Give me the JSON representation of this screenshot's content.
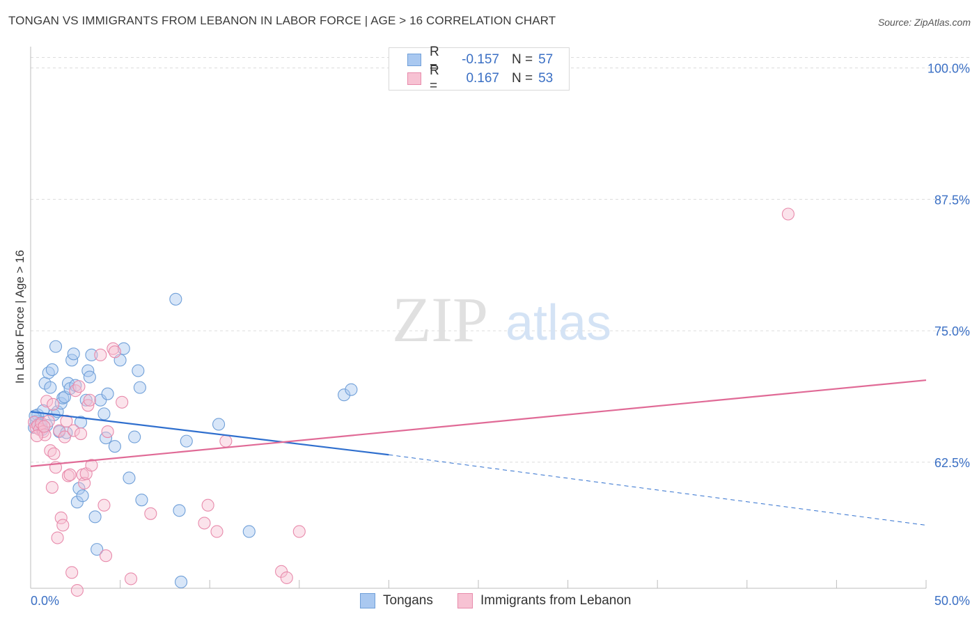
{
  "title": "TONGAN VS IMMIGRANTS FROM LEBANON IN LABOR FORCE | AGE > 16 CORRELATION CHART",
  "source": "Source: ZipAtlas.com",
  "watermark": {
    "zip": "ZIP",
    "atlas": "atlas"
  },
  "legend_top": [
    {
      "r_label": "R =",
      "r_value": "-0.157",
      "n_label": "N =",
      "n_value": "57",
      "color": "#a9c8f0",
      "border": "#6f9fd8"
    },
    {
      "r_label": "R =",
      "r_value": "0.167",
      "n_label": "N =",
      "n_value": "53",
      "color": "#f7c2d3",
      "border": "#e88aab"
    }
  ],
  "legend_bottom": [
    {
      "label": "Tongans",
      "color": "#a9c8f0",
      "border": "#6f9fd8"
    },
    {
      "label": "Immigrants from Lebanon",
      "color": "#f7c2d3",
      "border": "#e88aab"
    }
  ],
  "chart_data": {
    "type": "scatter",
    "title": "TONGAN VS IMMIGRANTS FROM LEBANON IN LABOR FORCE | AGE > 16 CORRELATION CHART",
    "xlabel": "",
    "ylabel": "In Labor Force | Age > 16",
    "xlim": [
      0,
      50
    ],
    "ylim": [
      50.5,
      101.5
    ],
    "x_tick_labels": [
      "0.0%",
      "50.0%"
    ],
    "y_ticks": [
      62.5,
      75.0,
      87.5,
      100.0
    ],
    "y_tick_labels": [
      "62.5%",
      "75.0%",
      "87.5%",
      "100.0%"
    ],
    "grid": true,
    "series": [
      {
        "name": "Tongans",
        "color": "#6f9fd8",
        "fill": "#a9c8f0",
        "trend": {
          "x0": 0,
          "y0": 67.3,
          "x1": 20,
          "y1": 63.2,
          "dash_x1": 50,
          "dash_y1": 56.5,
          "color": "#2f6fce"
        },
        "points": [
          [
            0.2,
            65.8
          ],
          [
            0.3,
            66.4
          ],
          [
            0.4,
            67.0
          ],
          [
            0.5,
            66.2
          ],
          [
            0.6,
            65.9
          ],
          [
            0.7,
            67.4
          ],
          [
            0.8,
            70.0
          ],
          [
            0.9,
            66.0
          ],
          [
            1.0,
            71.0
          ],
          [
            1.1,
            69.6
          ],
          [
            1.2,
            71.3
          ],
          [
            1.3,
            67.0
          ],
          [
            1.4,
            73.5
          ],
          [
            1.5,
            67.3
          ],
          [
            1.6,
            65.4
          ],
          [
            1.7,
            68.1
          ],
          [
            1.8,
            68.6
          ],
          [
            1.9,
            68.7
          ],
          [
            2.0,
            65.3
          ],
          [
            2.1,
            70.0
          ],
          [
            2.2,
            69.5
          ],
          [
            2.3,
            72.2
          ],
          [
            2.4,
            72.8
          ],
          [
            2.5,
            69.8
          ],
          [
            2.6,
            58.7
          ],
          [
            2.7,
            60.0
          ],
          [
            2.8,
            66.3
          ],
          [
            2.9,
            59.3
          ],
          [
            3.1,
            68.4
          ],
          [
            3.2,
            71.2
          ],
          [
            3.3,
            70.6
          ],
          [
            3.4,
            72.7
          ],
          [
            3.6,
            57.3
          ],
          [
            3.7,
            54.2
          ],
          [
            3.9,
            68.4
          ],
          [
            4.1,
            67.1
          ],
          [
            4.2,
            64.8
          ],
          [
            4.3,
            69.0
          ],
          [
            4.7,
            64.0
          ],
          [
            5.0,
            72.2
          ],
          [
            5.2,
            73.3
          ],
          [
            5.5,
            61.0
          ],
          [
            5.8,
            64.9
          ],
          [
            6.0,
            71.2
          ],
          [
            6.1,
            69.6
          ],
          [
            6.2,
            58.9
          ],
          [
            8.1,
            78.0
          ],
          [
            8.3,
            57.9
          ],
          [
            8.4,
            51.1
          ],
          [
            8.7,
            64.5
          ],
          [
            10.5,
            66.1
          ],
          [
            12.2,
            55.9
          ],
          [
            17.5,
            68.9
          ],
          [
            17.9,
            69.4
          ],
          [
            0.25,
            66.9
          ],
          [
            0.55,
            66.0
          ],
          [
            0.65,
            65.6
          ]
        ]
      },
      {
        "name": "Immigrants from Lebanon",
        "color": "#e88aab",
        "fill": "#f7c2d3",
        "trend": {
          "x0": 0,
          "y0": 62.1,
          "x1": 50,
          "y1": 70.3,
          "color": "#e06a96"
        },
        "points": [
          [
            0.2,
            66.3
          ],
          [
            0.3,
            65.8
          ],
          [
            0.4,
            66.0
          ],
          [
            0.5,
            65.6
          ],
          [
            0.6,
            66.2
          ],
          [
            0.7,
            65.4
          ],
          [
            0.8,
            65.1
          ],
          [
            0.9,
            68.3
          ],
          [
            1.0,
            66.4
          ],
          [
            1.1,
            63.6
          ],
          [
            1.2,
            60.1
          ],
          [
            1.3,
            63.3
          ],
          [
            1.4,
            62.0
          ],
          [
            1.5,
            55.3
          ],
          [
            1.6,
            65.5
          ],
          [
            1.7,
            57.2
          ],
          [
            1.8,
            56.5
          ],
          [
            1.9,
            64.9
          ],
          [
            2.0,
            66.4
          ],
          [
            2.1,
            61.2
          ],
          [
            2.2,
            61.3
          ],
          [
            2.3,
            52.0
          ],
          [
            2.4,
            65.5
          ],
          [
            2.5,
            69.3
          ],
          [
            2.6,
            50.3
          ],
          [
            2.7,
            69.7
          ],
          [
            2.8,
            65.2
          ],
          [
            2.9,
            61.3
          ],
          [
            3.0,
            60.5
          ],
          [
            3.1,
            61.4
          ],
          [
            3.2,
            67.9
          ],
          [
            3.3,
            68.4
          ],
          [
            3.4,
            62.2
          ],
          [
            3.9,
            72.7
          ],
          [
            4.1,
            58.4
          ],
          [
            4.2,
            53.6
          ],
          [
            4.3,
            65.4
          ],
          [
            4.6,
            73.3
          ],
          [
            4.7,
            73.0
          ],
          [
            5.1,
            68.2
          ],
          [
            5.6,
            51.4
          ],
          [
            6.7,
            57.6
          ],
          [
            9.7,
            56.7
          ],
          [
            9.9,
            58.4
          ],
          [
            10.4,
            55.9
          ],
          [
            10.9,
            64.5
          ],
          [
            14.0,
            52.1
          ],
          [
            14.3,
            51.5
          ],
          [
            15.0,
            55.9
          ],
          [
            42.3,
            86.1
          ],
          [
            0.35,
            65.0
          ],
          [
            1.25,
            68.0
          ],
          [
            0.75,
            65.9
          ]
        ]
      }
    ]
  }
}
